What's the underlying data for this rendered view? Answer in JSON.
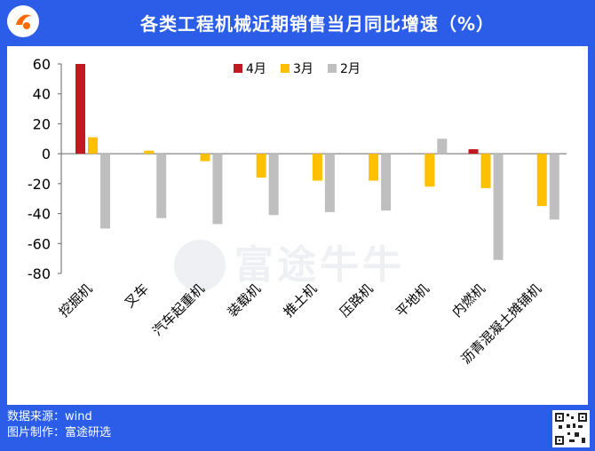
{
  "header": {
    "title": "各类工程机械近期销售当月同比增速（%）"
  },
  "watermark": {
    "text": "富途牛牛"
  },
  "footer": {
    "source": "数据来源：wind",
    "producer": "图片制作：富途研选"
  },
  "colors": {
    "apr": "#c0191f",
    "mar": "#ffc000",
    "feb": "#bfbfbf",
    "background": "#2b5de8"
  },
  "chart_data": {
    "type": "bar",
    "title": "各类工程机械近期销售当月同比增速（%）",
    "xlabel": "",
    "ylabel": "",
    "ylim": [
      -80,
      60
    ],
    "yticks": [
      60,
      40,
      20,
      0,
      -20,
      -40,
      -60,
      -80
    ],
    "grid": false,
    "legend_position": "top",
    "categories": [
      "挖掘机",
      "叉车",
      "汽车起重机",
      "装载机",
      "推土机",
      "压路机",
      "平地机",
      "内燃机",
      "沥青混凝土摊铺机"
    ],
    "series": [
      {
        "name": "4月",
        "color": "#c0191f",
        "values": [
          60,
          0,
          0,
          0,
          0,
          0,
          0,
          3,
          0
        ]
      },
      {
        "name": "3月",
        "color": "#ffc000",
        "values": [
          11,
          2,
          -5,
          -16,
          -18,
          -18,
          -22,
          -23,
          -35
        ]
      },
      {
        "name": "2月",
        "color": "#bfbfbf",
        "values": [
          -50,
          -43,
          -47,
          -41,
          -39,
          -38,
          10,
          -71,
          -44
        ]
      }
    ]
  }
}
